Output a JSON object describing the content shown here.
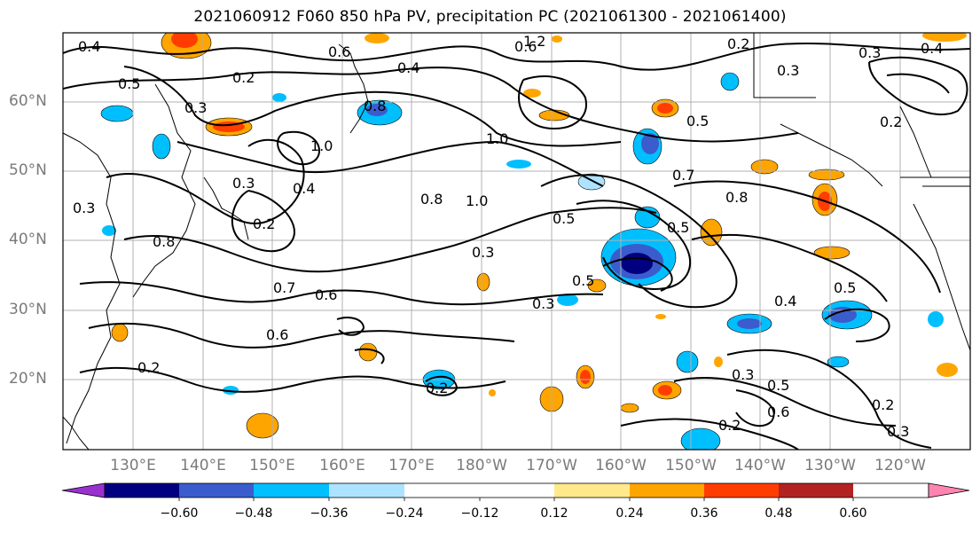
{
  "title": "2021060912 F060 850 hPa PV, precipitation PC (2021061300 - 2021061400)",
  "lat_labels": [
    "60°N",
    "50°N",
    "40°N",
    "30°N",
    "20°N"
  ],
  "lon_labels": [
    "130°E",
    "140°E",
    "150°E",
    "160°E",
    "170°E",
    "180°W",
    "170°W",
    "160°W",
    "150°W",
    "140°W",
    "130°W",
    "120°W"
  ],
  "colorbar": {
    "colors": [
      "#9b30d0",
      "#000080",
      "#3a5ccc",
      "#00bfff",
      "#aee3ff",
      "#ffffff",
      "#ffffff",
      "#ffe98a",
      "#ffa500",
      "#ff3d00",
      "#b22222",
      "#ff85b0"
    ],
    "tick_labels": [
      "−0.60",
      "−0.48",
      "−0.36",
      "−0.24",
      "−0.12",
      "0.12",
      "0.24",
      "0.36",
      "0.48",
      "0.60"
    ]
  },
  "contour_labels": [
    "0.4",
    "0.5",
    "0.2",
    "0.3",
    "0.6",
    "0.4",
    "1.2",
    "0.2",
    "0.3",
    "0.4",
    "0.2",
    "0.3",
    "0.3",
    "0.4",
    "0.8",
    "0.5",
    "0.7",
    "0.6",
    "0.3",
    "0.2",
    "1.0",
    "1.0",
    "0.8",
    "1.0",
    "0.5",
    "0.3",
    "0.5",
    "0.7",
    "0.8",
    "0.8",
    "0.5",
    "0.3",
    "0.4",
    "0.5",
    "0.3",
    "0.2",
    "0.6",
    "0.6",
    "0.2",
    "0.6",
    "0.3",
    "0.2",
    "0.2",
    "0.5"
  ]
}
